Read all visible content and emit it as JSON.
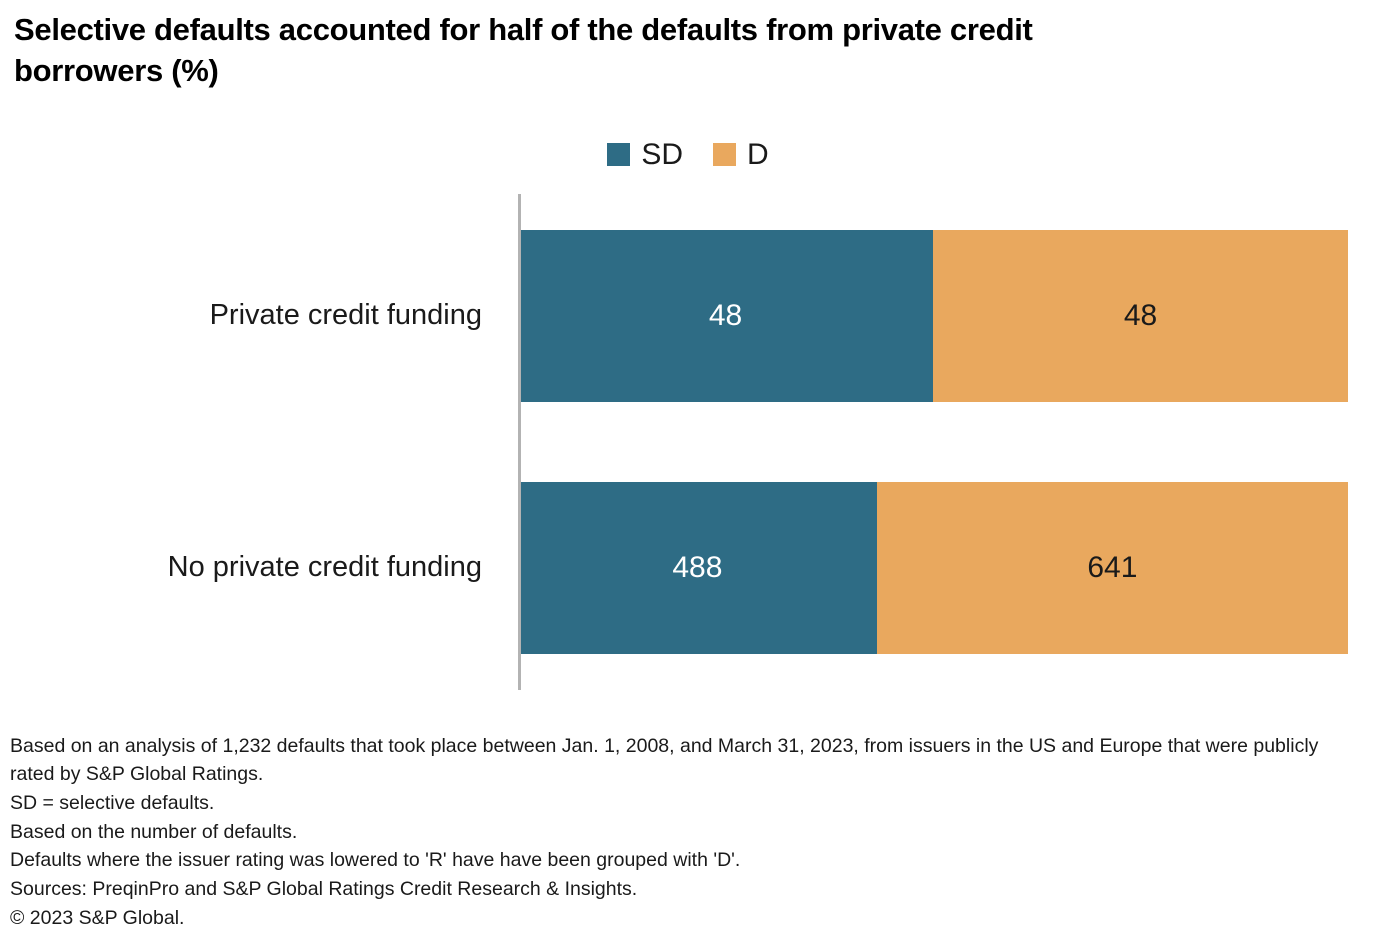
{
  "title": "Selective defaults accounted for half of the defaults from private credit borrowers (%)",
  "colors": {
    "sd": "#2E6C85",
    "d": "#E9A85E",
    "axis": "#b3b3b3",
    "text": "#1a1a1a"
  },
  "chart_data": {
    "type": "bar",
    "orientation": "horizontal",
    "stacked": true,
    "stacked_mode": "percent-of-row-total",
    "legend_position": "top",
    "categories": [
      "Private credit funding",
      "No private credit funding"
    ],
    "series": [
      {
        "name": "SD",
        "color": "#2E6C85",
        "text_color": "#ffffff",
        "values": [
          48,
          488
        ]
      },
      {
        "name": "D",
        "color": "#E9A85E",
        "text_color": "#1a1a1a",
        "values": [
          48,
          641
        ]
      }
    ],
    "value_labels": true
  },
  "footnotes": [
    "Based on an analysis of 1,232 defaults that took place between Jan. 1, 2008, and March 31, 2023, from issuers in the US and Europe that were publicly rated by S&P Global Ratings.",
    "SD = selective defaults.",
    "Based on the number of defaults.",
    "Defaults where the issuer rating was lowered to 'R' have have been grouped with 'D'.",
    "Sources: PreqinPro and S&P Global Ratings Credit Research & Insights.",
    "© 2023 S&P Global."
  ]
}
